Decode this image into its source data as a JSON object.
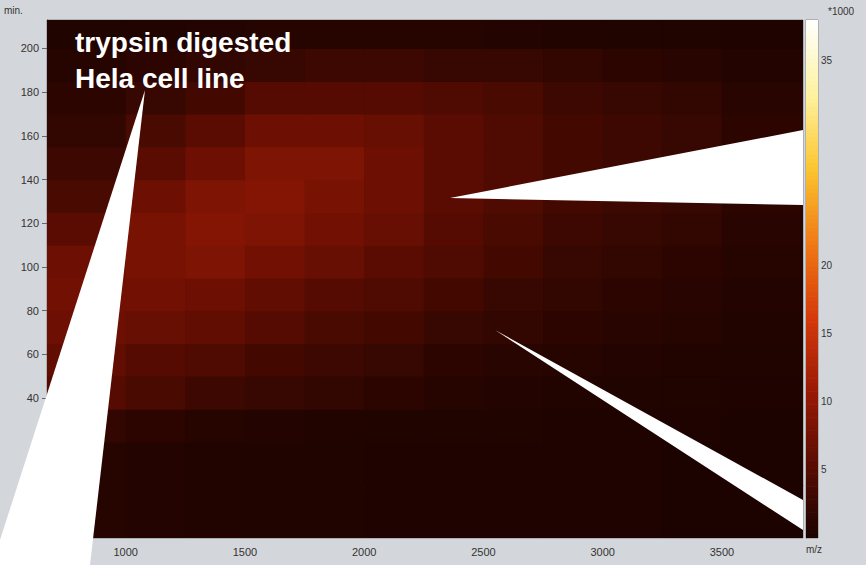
{
  "chart_data": {
    "type": "heatmap",
    "title": [
      "trypsin digested",
      "Hela cell line"
    ],
    "x_label": "m/z",
    "y_label": "min.",
    "xlim": [
      670,
      3840
    ],
    "xticks": [
      1000,
      1500,
      2000,
      2500,
      3000,
      3500
    ],
    "ylim": [
      -24,
      213
    ],
    "yticks": [
      40,
      60,
      80,
      100,
      120,
      140,
      160,
      180,
      200
    ],
    "grid": false,
    "x_bins": [
      670,
      1000,
      1250,
      1500,
      1750,
      2000,
      2250,
      2500,
      2750,
      3000,
      3250,
      3500,
      3840
    ],
    "y_bins": [
      -24,
      20,
      35,
      50,
      65,
      80,
      95,
      110,
      125,
      140,
      155,
      170,
      185,
      200,
      213
    ],
    "cells": [
      [
        1,
        0.8,
        0.6,
        0.5,
        0.4,
        0.3,
        0.3,
        0.3,
        0.3,
        0.3,
        0.2,
        0.2
      ],
      [
        2,
        1.5,
        1,
        0.8,
        0.6,
        0.5,
        0.4,
        0.4,
        0.3,
        0.3,
        0.3,
        0.2
      ],
      [
        5,
        4,
        3,
        2.5,
        2,
        1.5,
        1,
        0.8,
        0.6,
        0.5,
        0.4,
        0.3
      ],
      [
        6,
        5,
        4.5,
        3.5,
        3,
        2.5,
        1.5,
        1.2,
        1,
        0.8,
        0.6,
        0.4
      ],
      [
        7,
        6.5,
        6,
        5,
        4,
        3.5,
        2.5,
        2,
        1.5,
        1.2,
        1,
        0.6
      ],
      [
        7.5,
        7.5,
        7,
        6,
        5,
        4.5,
        3.5,
        2.5,
        2,
        1.5,
        1.2,
        0.8
      ],
      [
        7,
        8,
        8.5,
        7.5,
        6.5,
        5.5,
        4.5,
        3.5,
        2.5,
        2,
        1.5,
        1
      ],
      [
        5.5,
        8,
        9,
        8.5,
        7.5,
        6.5,
        5,
        4,
        3,
        2.5,
        2,
        1.2
      ],
      [
        4,
        7,
        8.5,
        9,
        8,
        7,
        5.5,
        4.5,
        3.5,
        3,
        2.5,
        1.5
      ],
      [
        3,
        5.5,
        7,
        8.5,
        8.5,
        7,
        5.5,
        4.5,
        3.5,
        3,
        2.5,
        1.5
      ],
      [
        2,
        4,
        5.5,
        7,
        7,
        6.5,
        5.5,
        4.5,
        3.5,
        3,
        2.5,
        1.5
      ],
      [
        1.5,
        2.5,
        3.5,
        5,
        5,
        5,
        4.5,
        4,
        3,
        2.5,
        2,
        1.2
      ],
      [
        1,
        1.5,
        2,
        2.5,
        3,
        3,
        2.5,
        2.5,
        2,
        1.5,
        1.2,
        0.8
      ],
      [
        0.5,
        0.6,
        0.8,
        1,
        1,
        1,
        1,
        0.8,
        0.6,
        0.5,
        0.4,
        0.3
      ]
    ],
    "colorbar_label": "*1000",
    "clim": [
      0,
      38
    ],
    "cticks": [
      5,
      10,
      15,
      20,
      35
    ]
  }
}
